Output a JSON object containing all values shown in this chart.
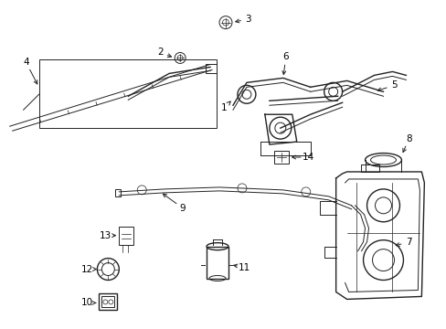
{
  "bg_color": "#ffffff",
  "line_color": "#222222",
  "text_color": "#000000",
  "fig_width": 4.89,
  "fig_height": 3.6,
  "dpi": 100,
  "label_fontsize": 7.5
}
